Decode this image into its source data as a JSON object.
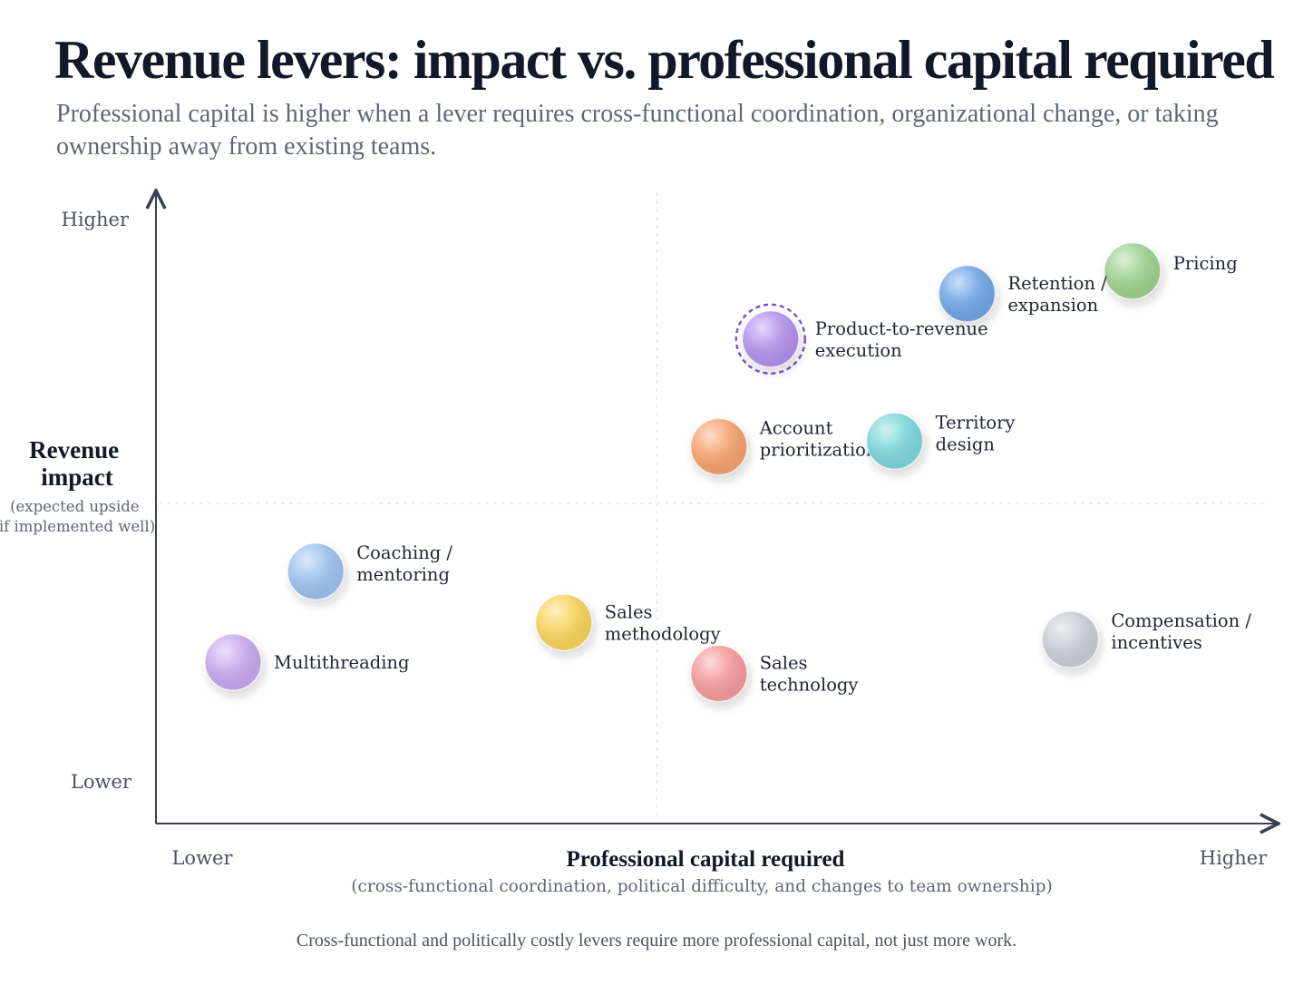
{
  "title": "Revenue levers: impact vs. professional capital required",
  "subtitle": "Professional capital is higher when a lever requires cross-functional coordination, organizational change, or taking ownership away from existing teams.",
  "footnote": "Cross-functional and politically costly levers require more professional capital, not just more work.",
  "chart_data": {
    "type": "scatter",
    "title": "Revenue levers: impact vs. professional capital required",
    "xlabel": "Professional capital required",
    "xlabel_sub": "(cross-functional coordination, political difficulty, and changes to team ownership)",
    "ylabel": "Revenue impact",
    "ylabel_sub": [
      "(expected upside",
      "if implemented well)"
    ],
    "x_low_label": "Lower",
    "x_high_label": "Higher",
    "y_low_label": "Lower",
    "y_high_label": "Higher",
    "xlim": [
      0,
      100
    ],
    "ylim": [
      0,
      100
    ],
    "quadrant_divider": {
      "x": 46,
      "y": 52
    },
    "points": [
      {
        "label": [
          "Pricing"
        ],
        "x": 92,
        "y": 93,
        "color": "#9fd18f",
        "label_side": "right-top"
      },
      {
        "label": [
          "Retention /",
          "expansion"
        ],
        "x": 76,
        "y": 89,
        "color": "#6fa6e6",
        "label_side": "right"
      },
      {
        "label": [
          "Product-to-revenue",
          "execution"
        ],
        "x": 57,
        "y": 81,
        "color": "#b391ec",
        "label_side": "right",
        "highlight": true
      },
      {
        "label": [
          "Account",
          "prioritization"
        ],
        "x": 52,
        "y": 62,
        "color": "#f6a26e",
        "label_side": "right-top"
      },
      {
        "label": [
          "Territory",
          "design"
        ],
        "x": 69,
        "y": 63,
        "color": "#7dd7dc",
        "label_side": "right-top"
      },
      {
        "label": [
          "Coaching /",
          "mentoring"
        ],
        "x": 13,
        "y": 40,
        "color": "#9cc2ee",
        "label_side": "right-top"
      },
      {
        "label": [
          "Sales",
          "methodology"
        ],
        "x": 37,
        "y": 31,
        "color": "#f8d35a",
        "label_side": "right"
      },
      {
        "label": [
          "Multithreading"
        ],
        "x": 5,
        "y": 24,
        "color": "#c8a8ee",
        "label_side": "right"
      },
      {
        "label": [
          "Sales",
          "technology"
        ],
        "x": 52,
        "y": 22,
        "color": "#f59a9c",
        "label_side": "right"
      },
      {
        "label": [
          "Compensation /",
          "incentives"
        ],
        "x": 86,
        "y": 28,
        "color": "#c9ced8",
        "label_side": "right-top"
      }
    ],
    "grid": false,
    "legend": "none"
  }
}
